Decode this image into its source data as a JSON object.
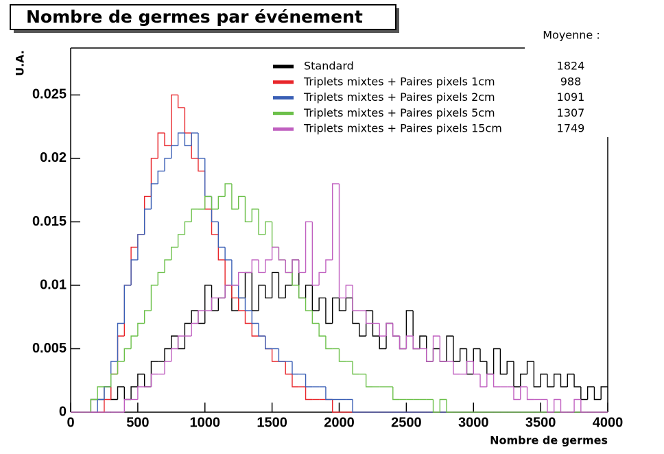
{
  "chart_data": {
    "type": "histogram",
    "title": "Nombre de germes par événement",
    "x_label": "Nombre de germes",
    "y_label": "U.A.",
    "legend_title": "Moyenne :",
    "bins": [
      0,
      50,
      100,
      150,
      200,
      250,
      300,
      350,
      400,
      450,
      500,
      550,
      600,
      650,
      700,
      750,
      800,
      850,
      900,
      950,
      1000,
      1050,
      1100,
      1150,
      1200,
      1250,
      1300,
      1350,
      1400,
      1450,
      1500,
      1550,
      1600,
      1650,
      1700,
      1750,
      1800,
      1850,
      1900,
      1950,
      2000,
      2050,
      2100,
      2150,
      2200,
      2250,
      2300,
      2350,
      2400,
      2450,
      2500,
      2550,
      2600,
      2650,
      2700,
      2750,
      2800,
      2850,
      2900,
      2950,
      3000,
      3050,
      3100,
      3150,
      3200,
      3250,
      3300,
      3350,
      3400,
      3450,
      3500,
      3550,
      3600,
      3650,
      3700,
      3750,
      3800,
      3850,
      3900,
      3950,
      4000
    ],
    "xlim": [
      0,
      4000
    ],
    "xticks": [
      0,
      500,
      1000,
      1500,
      2000,
      2500,
      3000,
      3500,
      4000
    ],
    "ylim": [
      0,
      0.0287
    ],
    "yticks": [
      0,
      0.005,
      0.01,
      0.015,
      0.02,
      0.025
    ],
    "series": [
      {
        "name": "Standard",
        "mean": 1824,
        "color": "#000000",
        "values": [
          0,
          0,
          0,
          0.001,
          0.001,
          0.002,
          0.001,
          0.002,
          0.001,
          0.002,
          0.003,
          0.002,
          0.004,
          0.004,
          0.005,
          0.006,
          0.005,
          0.007,
          0.008,
          0.007,
          0.01,
          0.008,
          0.009,
          0.01,
          0.008,
          0.009,
          0.011,
          0.008,
          0.01,
          0.009,
          0.011,
          0.009,
          0.01,
          0.012,
          0.009,
          0.01,
          0.008,
          0.009,
          0.007,
          0.009,
          0.008,
          0.009,
          0.007,
          0.006,
          0.008,
          0.006,
          0.005,
          0.007,
          0.006,
          0.005,
          0.008,
          0.005,
          0.006,
          0.004,
          0.005,
          0.004,
          0.006,
          0.004,
          0.005,
          0.003,
          0.005,
          0.004,
          0.003,
          0.005,
          0.003,
          0.004,
          0.002,
          0.003,
          0.004,
          0.002,
          0.003,
          0.002,
          0.003,
          0.002,
          0.003,
          0.002,
          0.001,
          0.002,
          0.001,
          0.002
        ]
      },
      {
        "name": "Triplets mixtes + Paires pixels 1cm",
        "mean": 988,
        "color": "#e8262b",
        "values": [
          0,
          0,
          0,
          0,
          0,
          0.001,
          0.003,
          0.006,
          0.01,
          0.013,
          0.014,
          0.017,
          0.02,
          0.022,
          0.021,
          0.025,
          0.024,
          0.022,
          0.02,
          0.019,
          0.016,
          0.014,
          0.012,
          0.01,
          0.009,
          0.008,
          0.007,
          0.006,
          0.006,
          0.005,
          0.004,
          0.004,
          0.003,
          0.002,
          0.002,
          0.001,
          0.001,
          0.001,
          0.001,
          0,
          0,
          0,
          0,
          0,
          0,
          0,
          0,
          0,
          0,
          0,
          0,
          0,
          0,
          0,
          0,
          0,
          0,
          0,
          0,
          0,
          0,
          0,
          0,
          0,
          0,
          0,
          0,
          0,
          0,
          0,
          0,
          0,
          0,
          0,
          0,
          0,
          0,
          0,
          0,
          0
        ]
      },
      {
        "name": "Triplets mixtes + Paires pixels 2cm",
        "mean": 1091,
        "color": "#3a5fb5",
        "values": [
          0,
          0,
          0,
          0,
          0.001,
          0.002,
          0.004,
          0.007,
          0.01,
          0.012,
          0.014,
          0.016,
          0.018,
          0.019,
          0.02,
          0.021,
          0.022,
          0.021,
          0.022,
          0.02,
          0.017,
          0.015,
          0.013,
          0.012,
          0.01,
          0.009,
          0.008,
          0.007,
          0.006,
          0.005,
          0.005,
          0.004,
          0.004,
          0.003,
          0.003,
          0.002,
          0.002,
          0.002,
          0.001,
          0.001,
          0.001,
          0.001,
          0,
          0,
          0,
          0,
          0,
          0,
          0,
          0,
          0,
          0,
          0,
          0,
          0,
          0,
          0,
          0,
          0,
          0,
          0,
          0,
          0,
          0,
          0,
          0,
          0,
          0,
          0,
          0,
          0,
          0,
          0,
          0,
          0,
          0,
          0,
          0,
          0,
          0
        ]
      },
      {
        "name": "Triplets mixtes + Paires pixels 5cm",
        "mean": 1307,
        "color": "#6cc04a",
        "values": [
          0,
          0,
          0,
          0.001,
          0.002,
          0.002,
          0.003,
          0.004,
          0.005,
          0.006,
          0.007,
          0.008,
          0.01,
          0.011,
          0.012,
          0.013,
          0.014,
          0.015,
          0.016,
          0.016,
          0.017,
          0.016,
          0.017,
          0.018,
          0.016,
          0.017,
          0.015,
          0.016,
          0.014,
          0.015,
          0.013,
          0.012,
          0.011,
          0.01,
          0.009,
          0.008,
          0.007,
          0.006,
          0.005,
          0.005,
          0.004,
          0.004,
          0.003,
          0.003,
          0.002,
          0.002,
          0.002,
          0.002,
          0.001,
          0.001,
          0.001,
          0.001,
          0.001,
          0.001,
          0,
          0.001,
          0,
          0,
          0,
          0,
          0,
          0,
          0,
          0,
          0,
          0,
          0,
          0,
          0,
          0,
          0,
          0,
          0,
          0,
          0,
          0,
          0,
          0,
          0,
          0
        ]
      },
      {
        "name": "Triplets mixtes + Paires pixels 15cm",
        "mean": 1749,
        "color": "#c060c0",
        "values": [
          0,
          0,
          0,
          0,
          0,
          0,
          0,
          0,
          0.001,
          0.001,
          0.002,
          0.002,
          0.003,
          0.003,
          0.004,
          0.005,
          0.006,
          0.006,
          0.007,
          0.008,
          0.008,
          0.009,
          0.009,
          0.01,
          0.01,
          0.011,
          0.011,
          0.012,
          0.011,
          0.012,
          0.013,
          0.012,
          0.011,
          0.012,
          0.011,
          0.015,
          0.01,
          0.011,
          0.012,
          0.018,
          0.009,
          0.01,
          0.008,
          0.008,
          0.007,
          0.007,
          0.006,
          0.007,
          0.006,
          0.005,
          0.006,
          0.005,
          0.005,
          0.004,
          0.006,
          0.004,
          0.004,
          0.003,
          0.003,
          0.004,
          0.003,
          0.002,
          0.003,
          0.002,
          0.002,
          0.002,
          0.001,
          0.002,
          0.001,
          0.001,
          0.001,
          0,
          0.001,
          0,
          0,
          0.001,
          0,
          0,
          0,
          0
        ]
      }
    ]
  }
}
